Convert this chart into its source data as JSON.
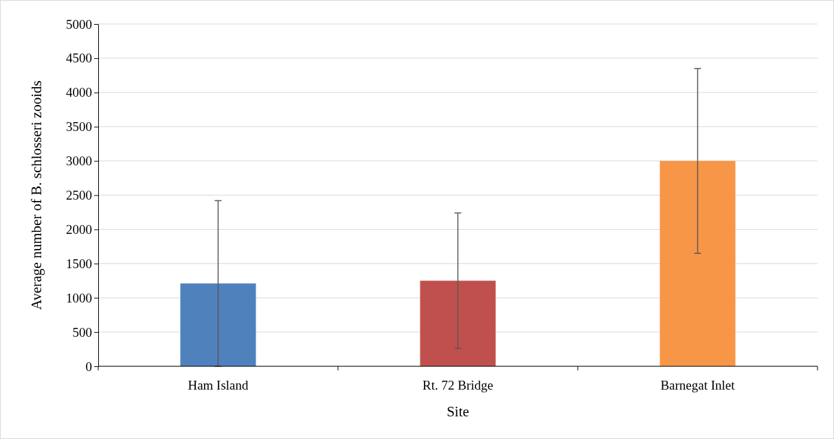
{
  "chart_data": {
    "type": "bar",
    "xlabel": "Site",
    "ylabel": "Average number of B. schlosseri zooids",
    "categories": [
      "Ham Island",
      "Rt. 72 Bridge",
      "Barnegat Inlet"
    ],
    "values": [
      1210,
      1250,
      3000
    ],
    "colors": [
      "#4f81bd",
      "#c0504d",
      "#f79646"
    ],
    "errors": [
      1210,
      990,
      1350
    ],
    "ylim": [
      0,
      5000
    ],
    "yticks": [
      0,
      500,
      1000,
      1500,
      2000,
      2500,
      3000,
      3500,
      4000,
      4500,
      5000
    ],
    "grid": "y"
  }
}
